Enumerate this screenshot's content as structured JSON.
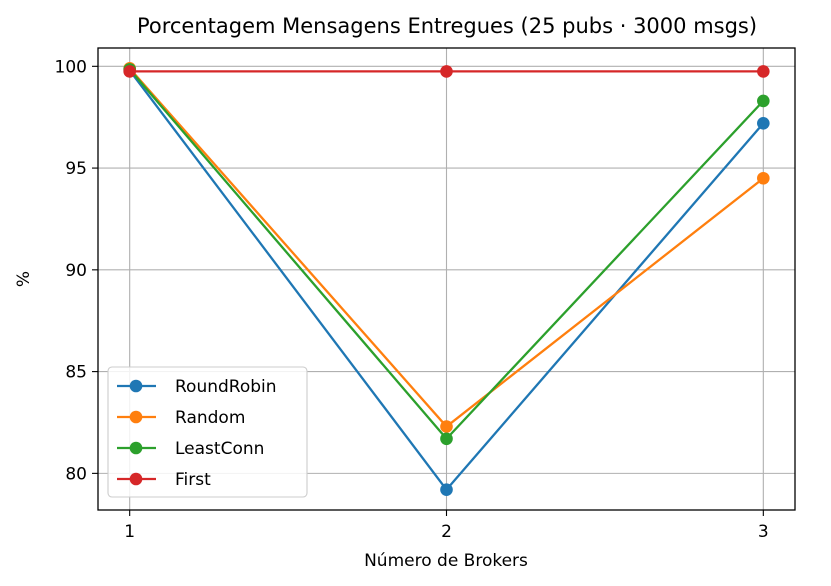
{
  "chart_data": {
    "type": "line",
    "title": "Porcentagem Mensagens Entregues (25 pubs · 3000 msgs)",
    "xlabel": "Número de Brokers",
    "ylabel": "%",
    "x": [
      1,
      2,
      3
    ],
    "x_ticks": [
      "1",
      "2",
      "3"
    ],
    "y_ticks": [
      "80",
      "85",
      "90",
      "95",
      "100"
    ],
    "xlim": [
      0.9,
      3.1
    ],
    "ylim": [
      78.2,
      100.9
    ],
    "grid": true,
    "legend_position": "lower-left",
    "series": [
      {
        "name": "RoundRobin",
        "color": "#1f77b4",
        "values": [
          99.8,
          79.2,
          97.2
        ]
      },
      {
        "name": "Random",
        "color": "#ff7f0e",
        "values": [
          99.9,
          82.3,
          94.5
        ]
      },
      {
        "name": "LeastConn",
        "color": "#2ca02c",
        "values": [
          99.85,
          81.7,
          98.3
        ]
      },
      {
        "name": "First",
        "color": "#d62728",
        "values": [
          99.75,
          99.75,
          99.75
        ]
      }
    ]
  }
}
